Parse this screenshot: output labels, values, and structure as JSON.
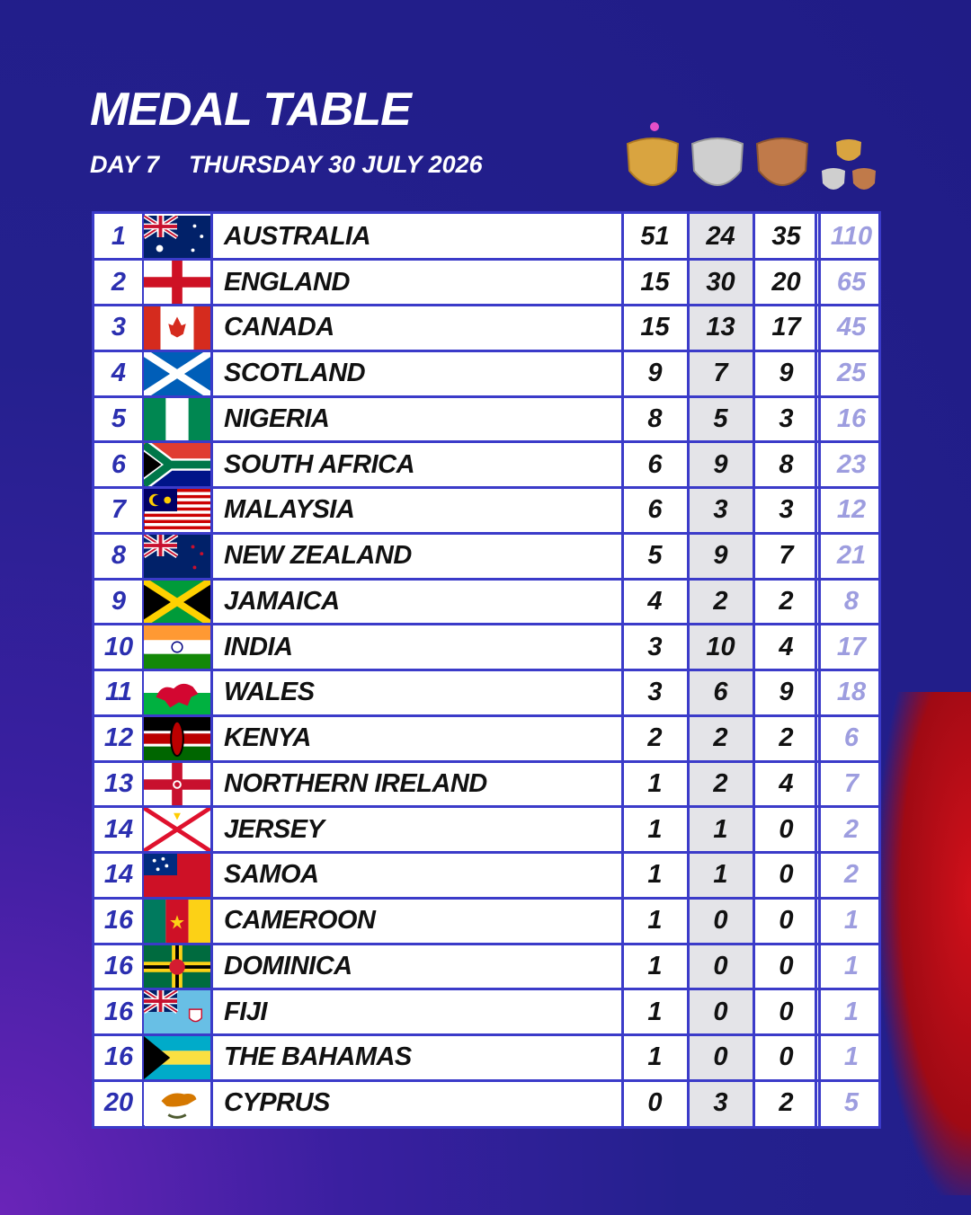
{
  "header": {
    "title": "MEDAL TABLE",
    "day": "DAY 7",
    "date": "THURSDAY 30 JULY 2026"
  },
  "table": {
    "rows": [
      [
        1,
        "AUSTRALIA",
        51,
        24,
        35,
        110
      ],
      [
        2,
        "ENGLAND",
        15,
        30,
        20,
        65
      ],
      [
        3,
        "CANADA",
        15,
        13,
        17,
        45
      ],
      [
        4,
        "SCOTLAND",
        9,
        7,
        9,
        25
      ],
      [
        5,
        "NIGERIA",
        8,
        5,
        3,
        16
      ],
      [
        6,
        "SOUTH AFRICA",
        6,
        9,
        8,
        23
      ],
      [
        7,
        "MALAYSIA",
        6,
        3,
        3,
        12
      ],
      [
        8,
        "NEW ZEALAND",
        5,
        9,
        7,
        21
      ],
      [
        9,
        "JAMAICA",
        4,
        2,
        2,
        8
      ],
      [
        10,
        "INDIA",
        3,
        10,
        4,
        17
      ],
      [
        11,
        "WALES",
        3,
        6,
        9,
        18
      ],
      [
        12,
        "KENYA",
        2,
        2,
        2,
        6
      ],
      [
        13,
        "NORTHERN IRELAND",
        1,
        2,
        4,
        7
      ],
      [
        14,
        "JERSEY",
        1,
        1,
        0,
        2
      ],
      [
        14,
        "SAMOA",
        1,
        1,
        0,
        2
      ],
      [
        16,
        "CAMEROON",
        1,
        0,
        0,
        1
      ],
      [
        16,
        "DOMINICA",
        1,
        0,
        0,
        1
      ],
      [
        16,
        "FIJI",
        1,
        0,
        0,
        1
      ],
      [
        16,
        "THE BAHAMAS",
        1,
        0,
        0,
        1
      ],
      [
        20,
        "CYPRUS",
        0,
        3,
        2,
        5
      ]
    ]
  }
}
